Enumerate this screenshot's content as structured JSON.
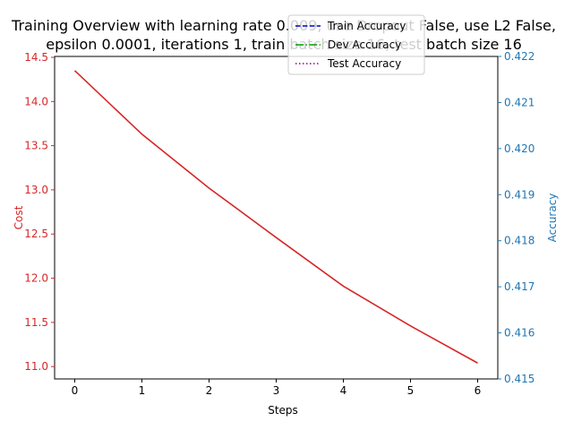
{
  "chart_data": {
    "type": "line",
    "title": "Training Overview with learning rate 0.009, use Dropout False, use L2 False,",
    "title_line2": "epsilon 0.0001, iterations 1, train batch size 16, test batch size 16",
    "xlabel": "Steps",
    "ylabel_left": "Cost",
    "ylabel_right": "Accuracy",
    "x": [
      0,
      1,
      2,
      3,
      4,
      5,
      6
    ],
    "x_ticks": [
      "0",
      "1",
      "2",
      "3",
      "4",
      "5",
      "6"
    ],
    "xlim": [
      -0.3,
      6.3
    ],
    "y_left_lim": [
      10.86,
      14.51
    ],
    "y_left_ticks": [
      "11.0",
      "11.5",
      "12.0",
      "12.5",
      "13.0",
      "13.5",
      "14.0",
      "14.5"
    ],
    "y_right_lim": [
      0.415,
      0.422
    ],
    "y_right_ticks": [
      "0.415",
      "0.416",
      "0.417",
      "0.418",
      "0.419",
      "0.420",
      "0.421",
      "0.422"
    ],
    "left_axis_color": "#d62728",
    "right_axis_color": "#1f77b4",
    "grid": false,
    "legend_placement": "upper-center",
    "series": [
      {
        "name": "Cost",
        "axis": "left",
        "color": "#d62728",
        "dash": "solid",
        "values": [
          14.35,
          13.63,
          13.02,
          12.46,
          11.91,
          11.46,
          11.04
        ]
      }
    ],
    "legend": [
      {
        "name": "Train Accuracy",
        "color": "#0000cc",
        "dash": "dashed"
      },
      {
        "name": "Dev Accuracy",
        "color": "#00a000",
        "dash": "dashdot"
      },
      {
        "name": "Test Accuracy",
        "color": "#8b008b",
        "dash": "dotted"
      }
    ]
  }
}
